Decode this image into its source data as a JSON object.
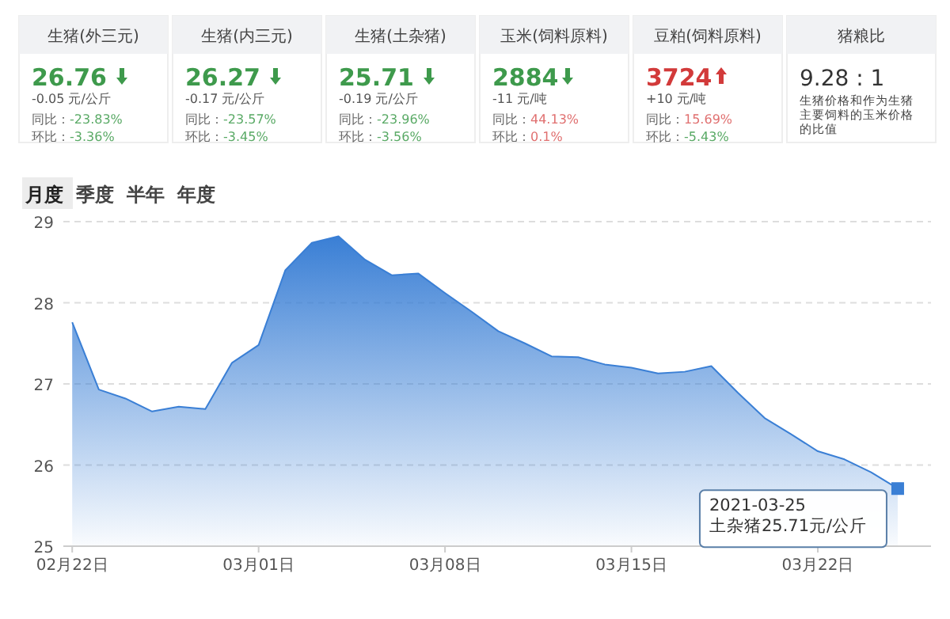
{
  "chart_data": [
    {
      "type": "other",
      "title": "生猪(外三元)",
      "annotations": [
        "26.76",
        "-0.05 元/公斤",
        "同比：-23.83%",
        "环比：-3.36%"
      ]
    },
    {
      "type": "other",
      "title": "生猪(内三元)",
      "annotations": [
        "26.27",
        "-0.17 元/公斤",
        "同比：-23.57%",
        "环比：-3.45%"
      ]
    },
    {
      "type": "other",
      "title": "生猪(土杂猪)",
      "annotations": [
        "25.71",
        "-0.19 元/公斤",
        "同比：-23.96%",
        "环比：-3.56%"
      ]
    },
    {
      "type": "other",
      "title": "玉米(饲料原料)",
      "annotations": [
        "2884",
        "-11 元/吨",
        "同比：44.13%",
        "环比：0.1%"
      ]
    },
    {
      "type": "other",
      "title": "豆粕(饲料原料)",
      "annotations": [
        "3724",
        "+10 元/吨",
        "同比：15.69%",
        "环比：-5.43%"
      ]
    },
    {
      "type": "other",
      "title": "猪粮比",
      "annotations": [
        "9.28 : 1",
        "生猪价格和作为生猪主要饲料的玉米价格的比值"
      ]
    },
    {
      "type": "area",
      "color": "#3a7fd5",
      "x": [
        "2021-02-22",
        "2021-02-23",
        "2021-02-24",
        "2021-02-25",
        "2021-02-26",
        "2021-02-27",
        "2021-02-28",
        "2021-03-01",
        "2021-03-02",
        "2021-03-03",
        "2021-03-04",
        "2021-03-05",
        "2021-03-06",
        "2021-03-07",
        "2021-03-08",
        "2021-03-09",
        "2021-03-10",
        "2021-03-11",
        "2021-03-12",
        "2021-03-13",
        "2021-03-14",
        "2021-03-15",
        "2021-03-16",
        "2021-03-17",
        "2021-03-18",
        "2021-03-19",
        "2021-03-20",
        "2021-03-21",
        "2021-03-22",
        "2021-03-23",
        "2021-03-24",
        "2021-03-25"
      ],
      "values": [
        27.76,
        26.93,
        26.82,
        26.66,
        26.72,
        26.69,
        27.26,
        27.48,
        28.4,
        28.74,
        28.82,
        28.53,
        28.34,
        28.36,
        28.12,
        27.89,
        27.65,
        27.5,
        27.34,
        27.33,
        27.24,
        27.2,
        27.13,
        27.15,
        27.22,
        26.89,
        26.58,
        26.38,
        26.17,
        26.07,
        25.91,
        25.71
      ],
      "xlim": [
        "2021-02-21T16:00",
        "2021-03-26T06:00"
      ],
      "xticks": [
        {
          "value": "2021-02-22",
          "label": "02月22日"
        },
        {
          "value": "2021-03-01",
          "label": "03月01日"
        },
        {
          "value": "2021-03-08",
          "label": "03月08日"
        },
        {
          "value": "2021-03-15",
          "label": "03月15日"
        },
        {
          "value": "2021-03-22",
          "label": "03月22日"
        }
      ],
      "ylim": [
        25,
        29
      ],
      "yticks": [
        25,
        26,
        27,
        28,
        29
      ],
      "grid": "y",
      "marker": "none",
      "annotations": [
        "月度",
        "季度",
        "半年",
        "年度",
        "2021-03-25",
        {
          "text": "土杂猪25.71元/公斤",
          "x": "2021-03-25",
          "y": 25.71
        }
      ]
    }
  ]
}
